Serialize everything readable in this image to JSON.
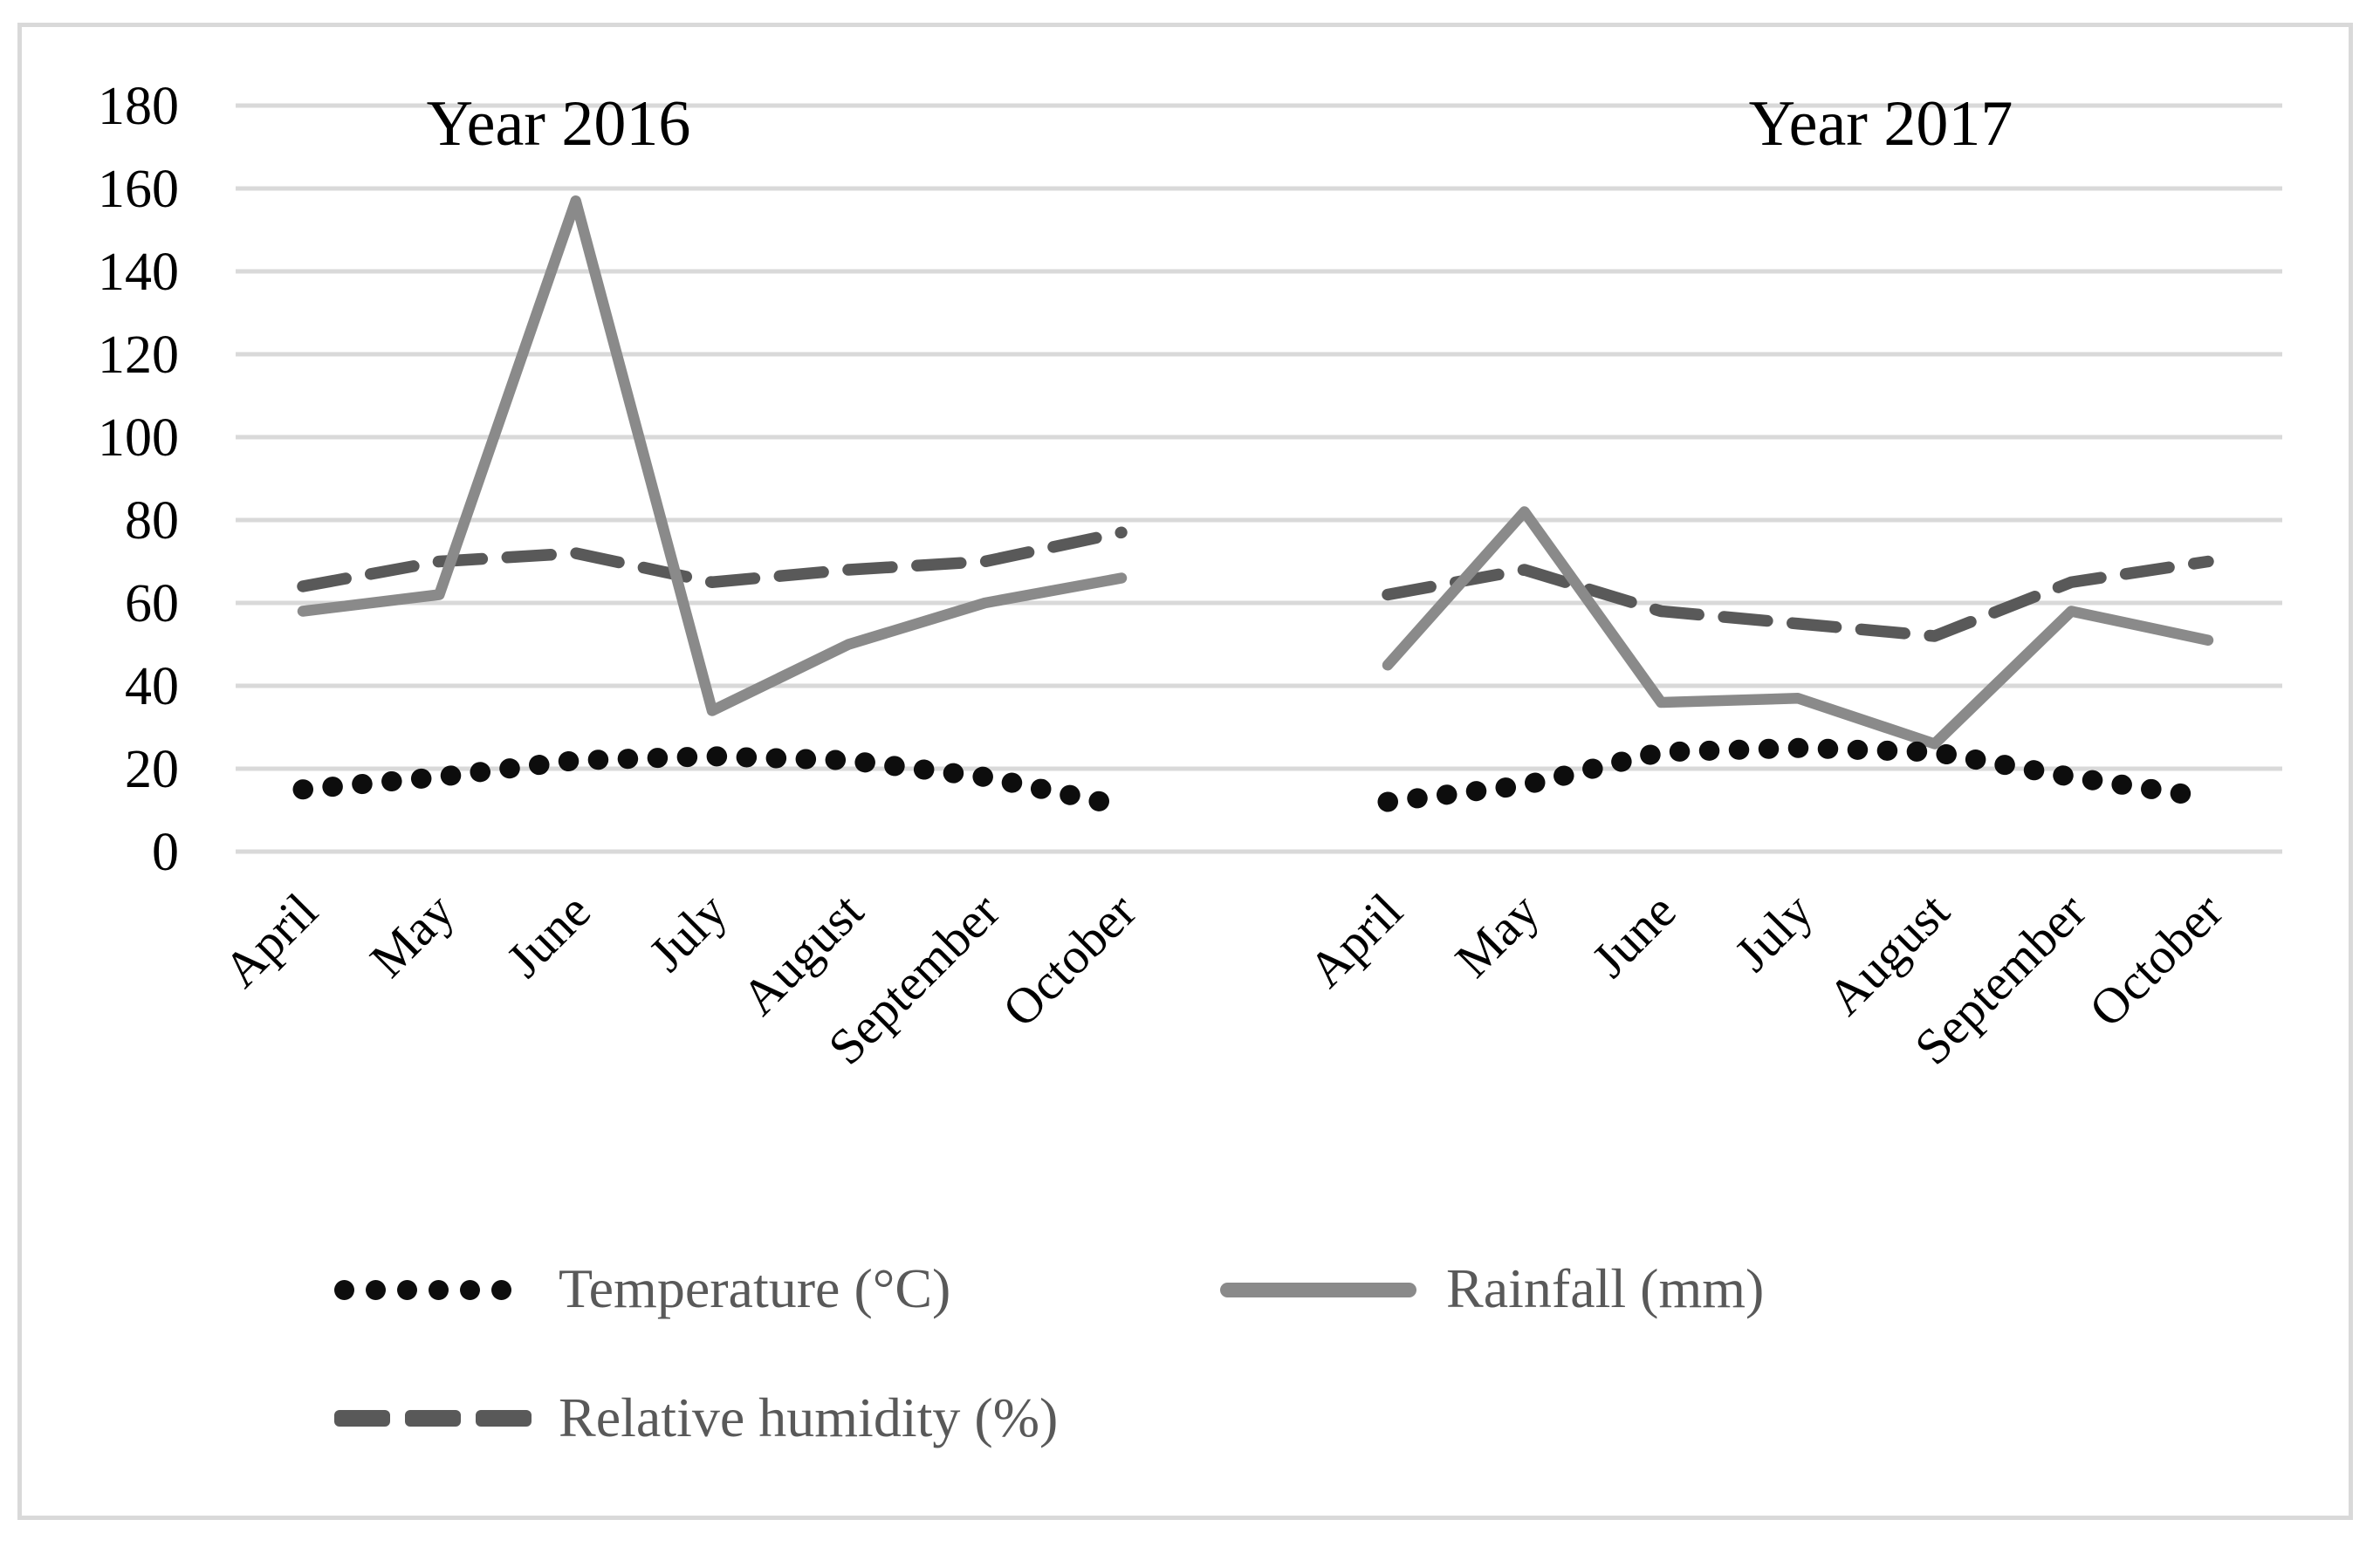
{
  "figure": {
    "background": "#ffffff",
    "border_color": "#d9d9d9",
    "gridline_color": "#d9d9d9",
    "axis_text_color": "#000000",
    "legend_text_color": "#595959"
  },
  "legend": {
    "items": [
      {
        "label": "Temperature (°C)",
        "marker": "dotted-line-swatch",
        "color": "#0d0d0d"
      },
      {
        "label": "Rainfall (mm)",
        "marker": "solid-line-swatch",
        "color": "#8a8a8a"
      },
      {
        "label": "Relative humidity (%)",
        "marker": "dashed-line-swatch",
        "color": "#595959"
      }
    ]
  },
  "chart_data": {
    "type": "line",
    "categories": [
      "April",
      "May",
      "June",
      "July",
      "August",
      "September",
      "October"
    ],
    "y_axis": {
      "min": 0,
      "max": 180,
      "step": 20,
      "ticks": [
        0,
        20,
        40,
        60,
        80,
        100,
        120,
        140,
        160,
        180
      ]
    },
    "grid": true,
    "legend_position": "bottom-left",
    "panels": [
      {
        "title": "Year 2016",
        "series": [
          {
            "name": "Temperature (°C)",
            "style": "dotted",
            "color": "#0d0d0d",
            "values": [
              15,
              18,
              22,
              23,
              22,
              18,
              11
            ]
          },
          {
            "name": "Rainfall (mm)",
            "style": "solid",
            "color": "#8a8a8a",
            "values": [
              58,
              62,
              157,
              34,
              50,
              60,
              66
            ]
          },
          {
            "name": "Relative humidity (%)",
            "style": "dashed",
            "color": "#595959",
            "values": [
              64,
              70,
              72,
              65,
              68,
              70,
              77
            ]
          }
        ]
      },
      {
        "title": "Year 2017",
        "series": [
          {
            "name": "Temperature (°C)",
            "style": "dotted",
            "color": "#0d0d0d",
            "values": [
              12,
              16,
              24,
              25,
              24,
              18,
              13
            ]
          },
          {
            "name": "Rainfall (mm)",
            "style": "solid",
            "color": "#8a8a8a",
            "values": [
              45,
              82,
              36,
              37,
              26,
              58,
              51
            ]
          },
          {
            "name": "Relative humidity (%)",
            "style": "dashed",
            "color": "#595959",
            "values": [
              62,
              68,
              58,
              55,
              52,
              65,
              70
            ]
          }
        ]
      }
    ]
  }
}
